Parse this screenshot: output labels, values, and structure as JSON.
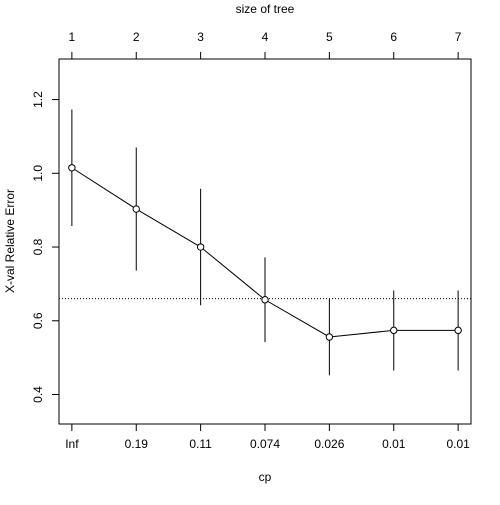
{
  "chart_data": {
    "type": "line",
    "plot": "cross-validation error vs complexity parameter",
    "xlabel": "cp",
    "ylabel": "X-val Relative Error",
    "top_axis_label": "size of tree",
    "x_positions": [
      1,
      2,
      3,
      4,
      5,
      6,
      7
    ],
    "x_tick_labels": [
      "Inf",
      "0.19",
      "0.11",
      "0.074",
      "0.026",
      "0.01",
      "0.01"
    ],
    "top_tick_labels": [
      "1",
      "2",
      "3",
      "4",
      "5",
      "6",
      "7"
    ],
    "y_ticks": [
      0.4,
      0.6,
      0.8,
      1.0,
      1.2
    ],
    "y_tick_labels": [
      "0.4",
      "0.6",
      "0.8",
      "1.0",
      "1.2"
    ],
    "ylim": [
      0.32,
      1.31
    ],
    "xlim": [
      0.8,
      7.2
    ],
    "values": [
      1.015,
      0.903,
      0.8,
      0.657,
      0.556,
      0.574,
      0.574
    ],
    "error_low": [
      0.857,
      0.736,
      0.642,
      0.542,
      0.452,
      0.465,
      0.465
    ],
    "error_high": [
      1.173,
      1.07,
      0.958,
      0.772,
      0.66,
      0.682,
      0.682
    ],
    "reference_line": 0.66,
    "grid": false,
    "legend": "none",
    "colors": {
      "line": "#000000",
      "reference": "#000000",
      "background": "#ffffff"
    }
  }
}
